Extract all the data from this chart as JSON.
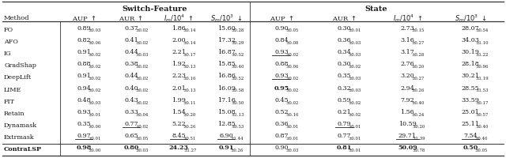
{
  "title_sf": "Switch-Feature",
  "title_st": "State",
  "methods": [
    "FO",
    "AFO",
    "IG",
    "GradShap",
    "DeepLift",
    "LIME",
    "FIT",
    "Retain",
    "Dynamask",
    "Extrmask",
    "ContraLSP"
  ],
  "method_smallcaps": [
    true,
    true,
    true,
    true,
    true,
    true,
    true,
    true,
    true,
    true,
    false
  ],
  "method_bold": [
    false,
    false,
    false,
    false,
    false,
    false,
    false,
    false,
    false,
    false,
    true
  ],
  "sf_headers": [
    "AUP ↑",
    "AUR ↑",
    "Im/10⁴ ↑",
    "Sm/10³ ↓"
  ],
  "st_headers": [
    "AUP ↑",
    "AUR ↑",
    "Im/10⁴ ↑",
    "Sm/10³ ↓"
  ],
  "data": [
    [
      "0.89",
      "0.03",
      "0.37",
      "0.02",
      "1.86",
      "0.14",
      "15.60",
      "0.28",
      "0.90",
      "0.05",
      "0.30",
      "0.01",
      "2.73",
      "0.15",
      "28.07",
      "0.54"
    ],
    [
      "0.82",
      "0.06",
      "0.41",
      "0.02",
      "2.00",
      "0.14",
      "17.32",
      "0.29",
      "0.84",
      "0.08",
      "0.36",
      "0.03",
      "3.16",
      "0.27",
      "34.03",
      "1.10"
    ],
    [
      "0.91",
      "0.02",
      "0.44",
      "0.03",
      "2.21",
      "0.17",
      "16.87",
      "0.52",
      "0.93",
      "0.02",
      "0.34",
      "0.03",
      "3.17",
      "0.28",
      "30.19",
      "1.22"
    ],
    [
      "0.88",
      "0.02",
      "0.38",
      "0.02",
      "1.92",
      "0.13",
      "15.85",
      "0.40",
      "0.88",
      "0.06",
      "0.30",
      "0.02",
      "2.76",
      "0.20",
      "28.18",
      "0.96"
    ],
    [
      "0.91",
      "0.02",
      "0.44",
      "0.02",
      "2.23",
      "0.16",
      "16.86",
      "0.52",
      "0.93",
      "0.02",
      "0.35",
      "0.03",
      "3.20",
      "0.27",
      "30.21",
      "1.19"
    ],
    [
      "0.94",
      "0.02",
      "0.40",
      "0.02",
      "2.01",
      "0.13",
      "16.09",
      "0.58",
      "0.95",
      "0.02",
      "0.32",
      "0.03",
      "2.94",
      "0.26",
      "28.55",
      "1.53"
    ],
    [
      "0.48",
      "0.03",
      "0.43",
      "0.02",
      "1.99",
      "0.11",
      "17.16",
      "0.50",
      "0.45",
      "0.02",
      "0.59",
      "0.02",
      "7.92",
      "0.40",
      "33.59",
      "0.17"
    ],
    [
      "0.93",
      "0.01",
      "0.33",
      "0.04",
      "1.54",
      "0.20",
      "15.08",
      "1.13",
      "0.52",
      "0.16",
      "0.21",
      "0.02",
      "1.56",
      "0.24",
      "25.01",
      "0.57"
    ],
    [
      "0.35",
      "0.00",
      "0.77",
      "0.02",
      "5.22",
      "0.26",
      "12.85",
      "0.53",
      "0.36",
      "0.01",
      "0.79",
      "0.01",
      "10.59",
      "0.20",
      "25.11",
      "0.40"
    ],
    [
      "0.97",
      "0.01",
      "0.65",
      "0.05",
      "8.45",
      "0.51",
      "6.90",
      "1.44",
      "0.87",
      "0.01",
      "0.77",
      "0.01",
      "29.71",
      "1.39",
      "7.54",
      "0.46"
    ],
    [
      "0.98",
      "0.00",
      "0.80",
      "0.03",
      "24.23",
      "1.27",
      "0.91",
      "0.26",
      "0.90",
      "0.03",
      "0.81",
      "0.01",
      "50.09",
      "0.78",
      "0.50",
      "0.05"
    ]
  ],
  "underline": [
    [
      false,
      false,
      false,
      false,
      false,
      false,
      false,
      false
    ],
    [
      false,
      false,
      false,
      false,
      false,
      false,
      false,
      false
    ],
    [
      false,
      false,
      false,
      false,
      true,
      false,
      false,
      false
    ],
    [
      false,
      false,
      false,
      false,
      false,
      false,
      false,
      false
    ],
    [
      false,
      false,
      false,
      false,
      true,
      false,
      false,
      false
    ],
    [
      false,
      false,
      false,
      false,
      false,
      false,
      false,
      false
    ],
    [
      false,
      false,
      false,
      false,
      false,
      false,
      false,
      false
    ],
    [
      false,
      false,
      false,
      false,
      false,
      false,
      false,
      false
    ],
    [
      false,
      true,
      false,
      false,
      false,
      true,
      false,
      false
    ],
    [
      true,
      false,
      true,
      true,
      false,
      false,
      true,
      true
    ],
    [
      false,
      false,
      false,
      false,
      false,
      false,
      false,
      false
    ]
  ],
  "bold": [
    [
      false,
      false,
      false,
      false,
      false,
      false,
      false,
      false
    ],
    [
      false,
      false,
      false,
      false,
      false,
      false,
      false,
      false
    ],
    [
      false,
      false,
      false,
      false,
      false,
      false,
      false,
      false
    ],
    [
      false,
      false,
      false,
      false,
      false,
      false,
      false,
      false
    ],
    [
      false,
      false,
      false,
      false,
      false,
      false,
      false,
      false
    ],
    [
      false,
      false,
      false,
      false,
      true,
      false,
      false,
      false
    ],
    [
      false,
      false,
      false,
      false,
      false,
      false,
      false,
      false
    ],
    [
      false,
      false,
      false,
      false,
      false,
      false,
      false,
      false
    ],
    [
      false,
      false,
      false,
      false,
      false,
      false,
      false,
      false
    ],
    [
      false,
      false,
      false,
      false,
      false,
      false,
      false,
      false
    ],
    [
      true,
      true,
      true,
      true,
      false,
      true,
      true,
      true
    ]
  ],
  "bg_color": "#ffffff",
  "text_color": "#1a1a1a",
  "line_color": "#333333"
}
